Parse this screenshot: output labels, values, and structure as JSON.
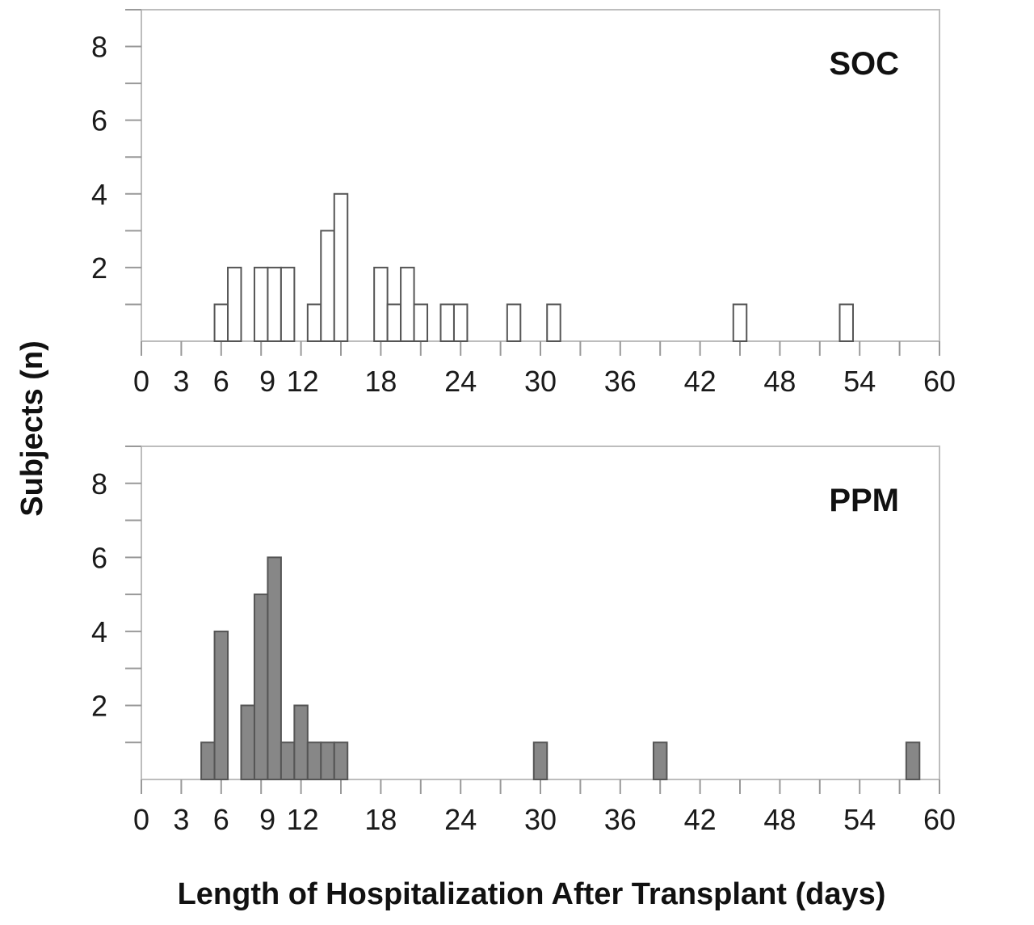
{
  "chart_data": [
    {
      "type": "bar",
      "panel_label": "SOC",
      "bin_width": 1,
      "bars": [
        {
          "x": 6,
          "y": 1
        },
        {
          "x": 7,
          "y": 2
        },
        {
          "x": 9,
          "y": 2
        },
        {
          "x": 10,
          "y": 2
        },
        {
          "x": 11,
          "y": 2
        },
        {
          "x": 13,
          "y": 1
        },
        {
          "x": 14,
          "y": 3
        },
        {
          "x": 15,
          "y": 4
        },
        {
          "x": 18,
          "y": 2
        },
        {
          "x": 19,
          "y": 1
        },
        {
          "x": 20,
          "y": 2
        },
        {
          "x": 21,
          "y": 1
        },
        {
          "x": 23,
          "y": 1
        },
        {
          "x": 24,
          "y": 1
        },
        {
          "x": 28,
          "y": 1
        },
        {
          "x": 31,
          "y": 1
        },
        {
          "x": 45,
          "y": 1
        },
        {
          "x": 53,
          "y": 1
        }
      ],
      "xlim": [
        0,
        60
      ],
      "ylim": [
        0,
        9
      ],
      "x_ticks": [
        0,
        3,
        6,
        9,
        12,
        18,
        24,
        30,
        36,
        42,
        48,
        54,
        60
      ],
      "x_tick_labels": [
        "0",
        "3",
        "6",
        "9",
        "12",
        "18",
        "24",
        "30",
        "36",
        "42",
        "48",
        "54",
        "60"
      ],
      "y_ticks": [
        2,
        4,
        6,
        8
      ],
      "y_tick_labels": [
        "2",
        "4",
        "6",
        "8"
      ],
      "bar_fill": "#ffffff",
      "bar_stroke": "#555555",
      "grid": false
    },
    {
      "type": "bar",
      "panel_label": "PPM",
      "bin_width": 1,
      "bars": [
        {
          "x": 5,
          "y": 1
        },
        {
          "x": 6,
          "y": 4
        },
        {
          "x": 8,
          "y": 2
        },
        {
          "x": 9,
          "y": 5
        },
        {
          "x": 10,
          "y": 6
        },
        {
          "x": 11,
          "y": 1
        },
        {
          "x": 12,
          "y": 2
        },
        {
          "x": 13,
          "y": 1
        },
        {
          "x": 14,
          "y": 1
        },
        {
          "x": 15,
          "y": 1
        },
        {
          "x": 30,
          "y": 1
        },
        {
          "x": 39,
          "y": 1
        },
        {
          "x": 58,
          "y": 1
        }
      ],
      "xlim": [
        0,
        60
      ],
      "ylim": [
        0,
        9
      ],
      "x_ticks": [
        0,
        3,
        6,
        9,
        12,
        18,
        24,
        30,
        36,
        42,
        48,
        54,
        60
      ],
      "x_tick_labels": [
        "0",
        "3",
        "6",
        "9",
        "12",
        "18",
        "24",
        "30",
        "36",
        "42",
        "48",
        "54",
        "60"
      ],
      "y_ticks": [
        2,
        4,
        6,
        8
      ],
      "y_tick_labels": [
        "2",
        "4",
        "6",
        "8"
      ],
      "bar_fill": "#878787",
      "bar_stroke": "#555555",
      "grid": false
    }
  ],
  "ylabel": "Subjects (n)",
  "xlabel": "Length of Hospitalization After Transplant (days)"
}
